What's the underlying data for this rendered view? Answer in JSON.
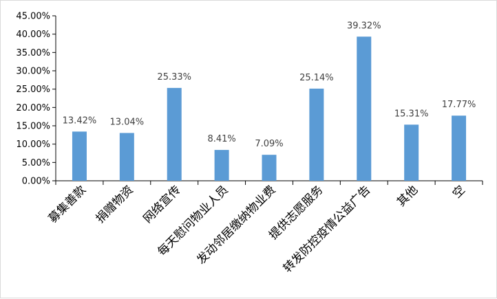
{
  "chart_data": {
    "type": "bar",
    "categories": [
      "募集善款",
      "捐赠物资",
      "网络宣传",
      "每天慰问物业人员",
      "发动邻居缴纳物业费",
      "提供志愿服务",
      "转发防控疫情公益广告",
      "其他",
      "空"
    ],
    "values": [
      13.42,
      13.04,
      25.33,
      8.41,
      7.09,
      25.14,
      39.32,
      15.31,
      17.77
    ],
    "data_labels": [
      "13.42%",
      "13.04%",
      "25.33%",
      "8.41%",
      "7.09%",
      "25.14%",
      "39.32%",
      "15.31%",
      "17.77%"
    ],
    "y_ticks": [
      "0.00%",
      "5.00%",
      "10.00%",
      "15.00%",
      "20.00%",
      "25.00%",
      "30.00%",
      "35.00%",
      "40.00%",
      "45.00%"
    ],
    "ylim": [
      0,
      45
    ],
    "title": "",
    "xlabel": "",
    "ylabel": "",
    "grid": false,
    "legend": "none",
    "bar_color": "#5B9BD5",
    "axis_color": "#000000"
  }
}
